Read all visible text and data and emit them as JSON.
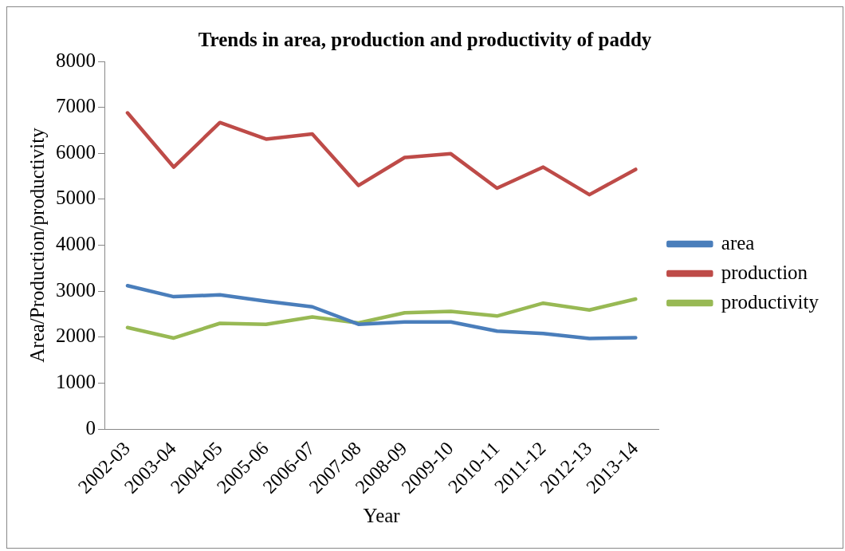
{
  "chart_data": {
    "type": "line",
    "title": "Trends in area, production and productivity of paddy",
    "xlabel": "Year",
    "ylabel": "Area/Production/productivity",
    "categories": [
      "2002-03",
      "2003-04",
      "2004-05",
      "2005-06",
      "2006-07",
      "2007-08",
      "2008-09",
      "2009-10",
      "2010-11",
      "2011-12",
      "2012-13",
      "2013-14"
    ],
    "series": [
      {
        "name": "area",
        "color": "#4a7ebb",
        "values": [
          3120,
          2880,
          2920,
          2780,
          2660,
          2280,
          2330,
          2330,
          2130,
          2080,
          1970,
          1990
        ]
      },
      {
        "name": "production",
        "color": "#be4b48",
        "values": [
          6880,
          5700,
          6670,
          6310,
          6420,
          5300,
          5910,
          5990,
          5240,
          5700,
          5100,
          5650
        ]
      },
      {
        "name": "productivity",
        "color": "#98b954",
        "values": [
          2210,
          1980,
          2300,
          2280,
          2440,
          2310,
          2530,
          2560,
          2460,
          2740,
          2590,
          2830
        ]
      }
    ],
    "ylim": [
      0,
      8000
    ],
    "yticks": [
      0,
      1000,
      2000,
      3000,
      4000,
      5000,
      6000,
      7000,
      8000
    ],
    "grid": false,
    "legend": "right",
    "marker": "none",
    "line_style": "solid"
  }
}
